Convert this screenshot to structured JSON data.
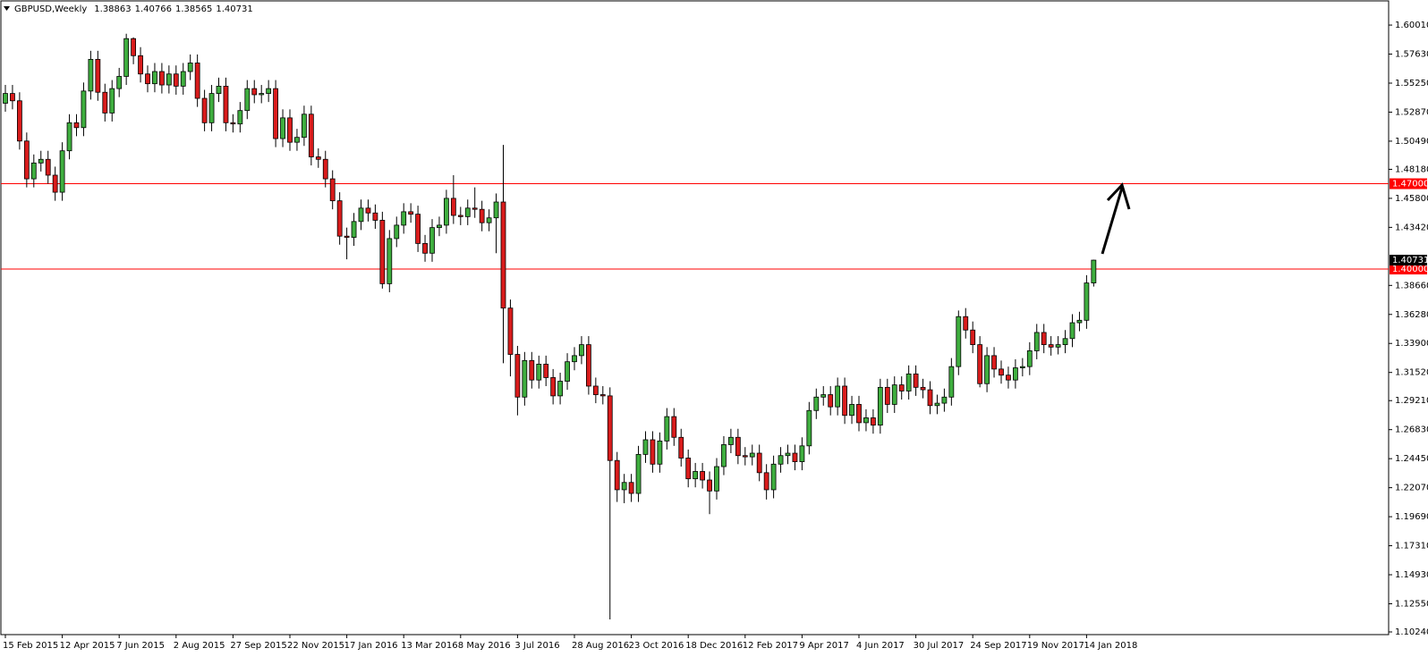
{
  "chart_data": {
    "type": "candlestick",
    "title": "GBPUSD,Weekly",
    "categories": [
      "15 Feb 2015",
      null,
      null,
      null,
      null,
      null,
      null,
      null,
      "12 Apr 2015",
      null,
      null,
      null,
      null,
      null,
      null,
      null,
      "7 Jun 2015",
      null,
      null,
      null,
      null,
      null,
      null,
      null,
      "2 Aug 2015",
      null,
      null,
      null,
      null,
      null,
      null,
      null,
      "27 Sep 2015",
      null,
      null,
      null,
      null,
      null,
      null,
      null,
      "22 Nov 2015",
      null,
      null,
      null,
      null,
      null,
      null,
      null,
      "17 Jan 2016",
      null,
      null,
      null,
      null,
      null,
      null,
      null,
      "13 Mar 2016",
      null,
      null,
      null,
      null,
      null,
      null,
      null,
      "8 May 2016",
      null,
      null,
      null,
      null,
      null,
      null,
      null,
      "3 Jul 2016",
      null,
      null,
      null,
      null,
      null,
      null,
      null,
      "28 Aug 2016",
      null,
      null,
      null,
      null,
      null,
      null,
      null,
      "23 Oct 2016",
      null,
      null,
      null,
      null,
      null,
      null,
      null,
      "18 Dec 2016",
      null,
      null,
      null,
      null,
      null,
      null,
      null,
      "12 Feb 2017",
      null,
      null,
      null,
      null,
      null,
      null,
      null,
      "9 Apr 2017",
      null,
      null,
      null,
      null,
      null,
      null,
      null,
      "4 Jun 2017",
      null,
      null,
      null,
      null,
      null,
      null,
      null,
      "30 Jul 2017",
      null,
      null,
      null,
      null,
      null,
      null,
      null,
      "24 Sep 2017",
      null,
      null,
      null,
      null,
      null,
      null,
      null,
      "19 Nov 2017",
      null,
      null,
      null,
      null,
      null,
      null,
      null,
      "14 Jan 2018",
      null
    ],
    "open": [
      1.536,
      1.544,
      1.538,
      1.505,
      1.474,
      1.487,
      1.49,
      1.477,
      1.463,
      1.497,
      1.52,
      1.516,
      1.546,
      1.572,
      1.545,
      1.528,
      1.548,
      1.558,
      1.589,
      1.575,
      1.56,
      1.552,
      1.562,
      1.551,
      1.56,
      1.55,
      1.562,
      1.569,
      1.54,
      1.52,
      1.544,
      1.55,
      1.52,
      1.519,
      1.53,
      1.548,
      1.543,
      1.544,
      1.548,
      1.507,
      1.524,
      1.504,
      1.508,
      1.527,
      1.492,
      1.49,
      1.474,
      1.456,
      1.427,
      1.426,
      1.439,
      1.45,
      1.446,
      1.44,
      1.388,
      1.425,
      1.436,
      1.447,
      1.445,
      1.421,
      1.413,
      1.434,
      1.436,
      1.458,
      1.444,
      1.443,
      1.45,
      1.449,
      1.438,
      1.442,
      1.455,
      1.368,
      1.33,
      1.295,
      1.325,
      1.309,
      1.322,
      1.311,
      1.296,
      1.308,
      1.324,
      1.329,
      1.338,
      1.304,
      1.297,
      1.296,
      1.243,
      1.219,
      1.225,
      1.216,
      1.248,
      1.26,
      1.24,
      1.259,
      1.279,
      1.262,
      1.245,
      1.228,
      1.234,
      1.227,
      1.218,
      1.238,
      1.256,
      1.262,
      1.247,
      1.246,
      1.249,
      1.233,
      1.219,
      1.24,
      1.247,
      1.249,
      1.242,
      1.255,
      1.284,
      1.295,
      1.297,
      1.287,
      1.304,
      1.28,
      1.289,
      1.274,
      1.278,
      1.272,
      1.303,
      1.289,
      1.305,
      1.3,
      1.314,
      1.303,
      1.301,
      1.288,
      1.29,
      1.295,
      1.32,
      1.361,
      1.35,
      1.338,
      1.306,
      1.329,
      1.318,
      1.313,
      1.309,
      1.319,
      1.32,
      1.333,
      1.348,
      1.338,
      1.336,
      1.338,
      1.343,
      1.356,
      1.358,
      1.38863
    ],
    "high": [
      1.551,
      1.551,
      1.545,
      1.512,
      1.494,
      1.497,
      1.497,
      1.484,
      1.504,
      1.527,
      1.527,
      1.553,
      1.579,
      1.579,
      1.552,
      1.555,
      1.565,
      1.593,
      1.59,
      1.582,
      1.567,
      1.569,
      1.569,
      1.567,
      1.567,
      1.569,
      1.576,
      1.576,
      1.547,
      1.551,
      1.557,
      1.557,
      1.527,
      1.537,
      1.555,
      1.555,
      1.551,
      1.555,
      1.555,
      1.531,
      1.531,
      1.515,
      1.534,
      1.534,
      1.499,
      1.497,
      1.481,
      1.463,
      1.434,
      1.446,
      1.457,
      1.457,
      1.453,
      1.447,
      1.432,
      1.443,
      1.454,
      1.454,
      1.452,
      1.428,
      1.441,
      1.443,
      1.465,
      1.477,
      1.451,
      1.457,
      1.467,
      1.456,
      1.449,
      1.462,
      1.5018,
      1.375,
      1.337,
      1.332,
      1.332,
      1.329,
      1.329,
      1.318,
      1.315,
      1.331,
      1.336,
      1.345,
      1.345,
      1.311,
      1.304,
      1.303,
      1.25,
      1.232,
      1.232,
      1.255,
      1.267,
      1.267,
      1.266,
      1.286,
      1.286,
      1.269,
      1.252,
      1.241,
      1.241,
      1.234,
      1.245,
      1.263,
      1.269,
      1.269,
      1.254,
      1.256,
      1.256,
      1.24,
      1.247,
      1.254,
      1.256,
      1.256,
      1.262,
      1.291,
      1.302,
      1.304,
      1.304,
      1.311,
      1.311,
      1.296,
      1.296,
      1.285,
      1.285,
      1.31,
      1.31,
      1.312,
      1.312,
      1.321,
      1.321,
      1.31,
      1.308,
      1.297,
      1.302,
      1.327,
      1.366,
      1.368,
      1.357,
      1.345,
      1.336,
      1.336,
      1.325,
      1.32,
      1.326,
      1.327,
      1.34,
      1.355,
      1.355,
      1.345,
      1.345,
      1.35,
      1.363,
      1.365,
      1.395,
      1.40766
    ],
    "low": [
      1.529,
      1.531,
      1.498,
      1.467,
      1.467,
      1.48,
      1.47,
      1.456,
      1.456,
      1.49,
      1.509,
      1.509,
      1.539,
      1.538,
      1.521,
      1.521,
      1.541,
      1.551,
      1.568,
      1.553,
      1.545,
      1.545,
      1.544,
      1.544,
      1.543,
      1.543,
      1.555,
      1.533,
      1.513,
      1.513,
      1.537,
      1.513,
      1.512,
      1.512,
      1.523,
      1.536,
      1.536,
      1.537,
      1.5,
      1.5,
      1.497,
      1.497,
      1.501,
      1.485,
      1.483,
      1.467,
      1.449,
      1.42,
      1.408,
      1.419,
      1.432,
      1.439,
      1.433,
      1.384,
      1.381,
      1.418,
      1.429,
      1.438,
      1.414,
      1.406,
      1.406,
      1.427,
      1.429,
      1.437,
      1.436,
      1.436,
      1.442,
      1.431,
      1.431,
      1.413,
      1.3228,
      1.312,
      1.28,
      1.288,
      1.302,
      1.302,
      1.304,
      1.289,
      1.289,
      1.301,
      1.317,
      1.322,
      1.297,
      1.29,
      1.289,
      1.1127,
      1.209,
      1.208,
      1.209,
      1.209,
      1.241,
      1.233,
      1.233,
      1.252,
      1.255,
      1.238,
      1.221,
      1.221,
      1.22,
      1.199,
      1.211,
      1.231,
      1.249,
      1.24,
      1.239,
      1.239,
      1.226,
      1.211,
      1.212,
      1.233,
      1.24,
      1.235,
      1.235,
      1.248,
      1.277,
      1.288,
      1.28,
      1.28,
      1.273,
      1.273,
      1.267,
      1.267,
      1.265,
      1.265,
      1.282,
      1.282,
      1.293,
      1.293,
      1.296,
      1.294,
      1.281,
      1.281,
      1.283,
      1.288,
      1.313,
      1.343,
      1.331,
      1.303,
      1.299,
      1.311,
      1.306,
      1.302,
      1.302,
      1.312,
      1.313,
      1.326,
      1.331,
      1.329,
      1.33,
      1.331,
      1.336,
      1.349,
      1.351,
      1.38565
    ],
    "close": [
      1.544,
      1.538,
      1.505,
      1.474,
      1.487,
      1.49,
      1.477,
      1.463,
      1.497,
      1.52,
      1.516,
      1.546,
      1.572,
      1.545,
      1.528,
      1.548,
      1.558,
      1.589,
      1.575,
      1.56,
      1.552,
      1.562,
      1.551,
      1.56,
      1.55,
      1.562,
      1.569,
      1.54,
      1.52,
      1.544,
      1.55,
      1.52,
      1.519,
      1.53,
      1.548,
      1.543,
      1.544,
      1.548,
      1.507,
      1.524,
      1.504,
      1.508,
      1.527,
      1.492,
      1.49,
      1.474,
      1.456,
      1.427,
      1.426,
      1.439,
      1.45,
      1.446,
      1.44,
      1.388,
      1.425,
      1.436,
      1.447,
      1.445,
      1.421,
      1.413,
      1.434,
      1.436,
      1.458,
      1.444,
      1.443,
      1.45,
      1.449,
      1.438,
      1.442,
      1.455,
      1.368,
      1.33,
      1.295,
      1.325,
      1.309,
      1.322,
      1.311,
      1.296,
      1.308,
      1.324,
      1.329,
      1.338,
      1.304,
      1.297,
      1.296,
      1.243,
      1.219,
      1.225,
      1.216,
      1.248,
      1.26,
      1.24,
      1.259,
      1.279,
      1.262,
      1.245,
      1.228,
      1.234,
      1.227,
      1.218,
      1.238,
      1.256,
      1.262,
      1.247,
      1.246,
      1.249,
      1.233,
      1.219,
      1.24,
      1.247,
      1.249,
      1.242,
      1.255,
      1.284,
      1.295,
      1.297,
      1.287,
      1.304,
      1.28,
      1.289,
      1.274,
      1.278,
      1.272,
      1.303,
      1.289,
      1.305,
      1.3,
      1.314,
      1.303,
      1.301,
      1.288,
      1.29,
      1.295,
      1.32,
      1.361,
      1.35,
      1.338,
      1.306,
      1.329,
      1.318,
      1.313,
      1.309,
      1.319,
      1.32,
      1.333,
      1.348,
      1.338,
      1.336,
      1.338,
      1.343,
      1.356,
      1.358,
      1.3886,
      1.40731
    ],
    "up_color": "#3fae3f",
    "down_color": "#d91c1c",
    "ylim": [
      1.1002,
      1.6192
    ],
    "yticks": [
      {
        "value": 1.6001,
        "label": "1.60010"
      },
      {
        "value": 1.5763,
        "label": "1.57630"
      },
      {
        "value": 1.5525,
        "label": "1.55250"
      },
      {
        "value": 1.5287,
        "label": "1.52870"
      },
      {
        "value": 1.5049,
        "label": "1.50490"
      },
      {
        "value": 1.4818,
        "label": "1.48180"
      },
      {
        "value": 1.458,
        "label": "1.45800"
      },
      {
        "value": 1.4342,
        "label": "1.43420"
      },
      {
        "value": 1.3866,
        "label": "1.38660"
      },
      {
        "value": 1.3628,
        "label": "1.36280"
      },
      {
        "value": 1.339,
        "label": "1.33900"
      },
      {
        "value": 1.3152,
        "label": "1.31520"
      },
      {
        "value": 1.2921,
        "label": "1.29210"
      },
      {
        "value": 1.2683,
        "label": "1.26830"
      },
      {
        "value": 1.2445,
        "label": "1.24450"
      },
      {
        "value": 1.2207,
        "label": "1.22070"
      },
      {
        "value": 1.1969,
        "label": "1.19690"
      },
      {
        "value": 1.1731,
        "label": "1.17310"
      },
      {
        "value": 1.1493,
        "label": "1.14930"
      },
      {
        "value": 1.1255,
        "label": "1.12550"
      },
      {
        "value": 1.1024,
        "label": "1.10240"
      }
    ],
    "levels": [
      {
        "value": 1.47,
        "label": "1.47000"
      },
      {
        "value": 1.4,
        "label": "1.40000"
      }
    ],
    "level_color": "#ff0000",
    "grid": false
  }
}
